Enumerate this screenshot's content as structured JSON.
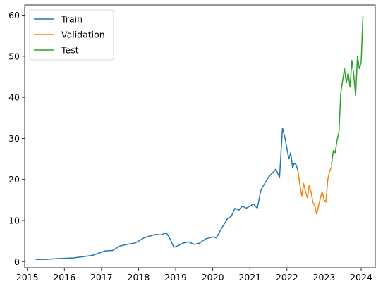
{
  "chart_data": {
    "type": "line",
    "title": "",
    "xlabel": "",
    "ylabel": "",
    "xlim": [
      2014.93,
      2024.38
    ],
    "ylim": [
      -1.5,
      62.5
    ],
    "x_ticks": [
      2015,
      2016,
      2017,
      2018,
      2019,
      2020,
      2021,
      2022,
      2023,
      2024
    ],
    "x_tick_labels": [
      "2015",
      "2016",
      "2017",
      "2018",
      "2019",
      "2020",
      "2021",
      "2022",
      "2023",
      "2024"
    ],
    "y_ticks": [
      0,
      10,
      20,
      30,
      40,
      50,
      60
    ],
    "y_tick_labels": [
      "0",
      "10",
      "20",
      "30",
      "40",
      "50",
      "60"
    ],
    "grid": false,
    "legend_position": "top-left",
    "series": [
      {
        "name": "Train",
        "color": "#1f77b4",
        "x": [
          2015.23,
          2015.5,
          2015.75,
          2016.0,
          2016.25,
          2016.5,
          2016.75,
          2017.0,
          2017.1,
          2017.3,
          2017.5,
          2017.7,
          2017.9,
          2018.0,
          2018.15,
          2018.3,
          2018.45,
          2018.6,
          2018.75,
          2018.85,
          2018.95,
          2019.05,
          2019.2,
          2019.35,
          2019.5,
          2019.65,
          2019.8,
          2020.0,
          2020.1,
          2020.2,
          2020.3,
          2020.4,
          2020.5,
          2020.6,
          2020.7,
          2020.8,
          2020.9,
          2021.0,
          2021.1,
          2021.2,
          2021.3,
          2021.4,
          2021.5,
          2021.6,
          2021.7,
          2021.8,
          2021.88,
          2021.95,
          2022.0,
          2022.05,
          2022.1,
          2022.15,
          2022.2,
          2022.25,
          2022.3
        ],
        "y": [
          0.5,
          0.55,
          0.7,
          0.8,
          0.9,
          1.2,
          1.5,
          2.3,
          2.6,
          2.7,
          3.8,
          4.2,
          4.5,
          5.0,
          5.8,
          6.2,
          6.6,
          6.5,
          7.0,
          5.5,
          3.5,
          3.8,
          4.5,
          4.8,
          4.2,
          4.5,
          5.5,
          6.0,
          5.8,
          7.5,
          9.0,
          10.5,
          11.0,
          13.0,
          12.5,
          13.5,
          13.0,
          13.5,
          14.0,
          13.0,
          17.5,
          19.0,
          20.5,
          21.5,
          22.5,
          20.5,
          32.5,
          30.0,
          27.5,
          25.0,
          26.5,
          23.0,
          24.0,
          23.5,
          22.0
        ]
      },
      {
        "name": "Validation",
        "color": "#ff7f0e",
        "x": [
          2022.3,
          2022.35,
          2022.4,
          2022.45,
          2022.5,
          2022.55,
          2022.6,
          2022.65,
          2022.7,
          2022.75,
          2022.8,
          2022.85,
          2022.9,
          2022.95,
          2023.0,
          2023.05,
          2023.1,
          2023.15,
          2023.2
        ],
        "y": [
          22.0,
          18.5,
          16.0,
          19.0,
          17.0,
          15.5,
          18.5,
          17.0,
          14.5,
          13.5,
          11.5,
          13.5,
          15.5,
          17.0,
          15.0,
          14.5,
          20.0,
          22.0,
          23.0
        ]
      },
      {
        "name": "Test",
        "color": "#2ca02c",
        "x": [
          2023.2,
          2023.25,
          2023.3,
          2023.35,
          2023.4,
          2023.45,
          2023.5,
          2023.55,
          2023.6,
          2023.65,
          2023.7,
          2023.75,
          2023.8,
          2023.85,
          2023.9,
          2023.95,
          2024.0,
          2024.05
        ],
        "y": [
          23.5,
          27.0,
          26.5,
          29.5,
          31.5,
          41.0,
          44.0,
          47.0,
          43.5,
          46.0,
          42.5,
          49.0,
          45.5,
          40.5,
          50.0,
          47.0,
          48.5,
          60.0
        ]
      }
    ]
  }
}
